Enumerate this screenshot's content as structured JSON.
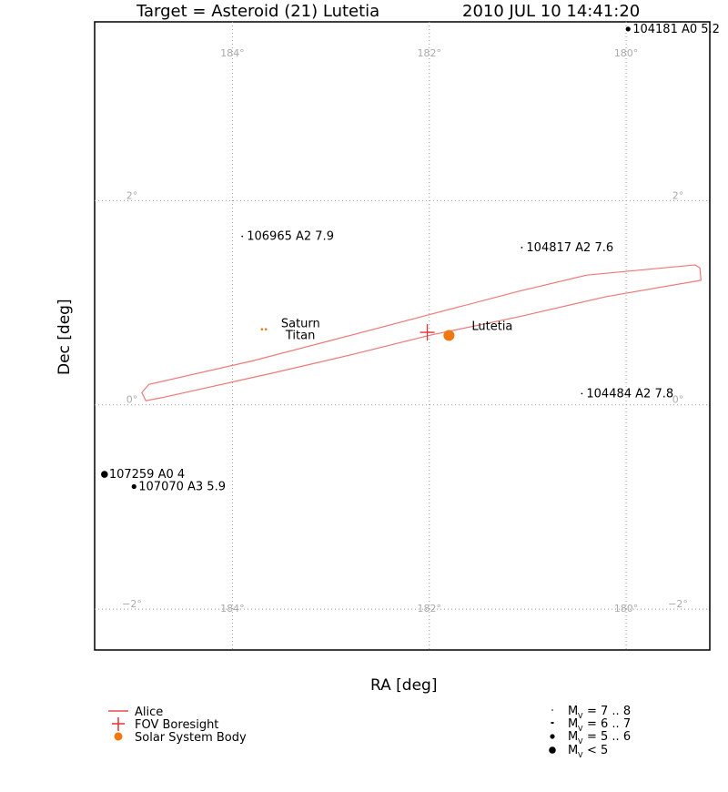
{
  "header": {
    "title": "Target = Asteroid (21) Lutetia",
    "timestamp": "2010 JUL 10 14:41:20"
  },
  "chart_data": {
    "type": "scatter",
    "xlabel": "RA [deg]",
    "ylabel": "Dec [deg]",
    "xlim": [
      185.4,
      179.15
    ],
    "ylim": [
      -2.4,
      3.75
    ],
    "grid": true,
    "x_ticks": [
      {
        "value": 184,
        "label": "184°"
      },
      {
        "value": 182,
        "label": "182°"
      },
      {
        "value": 180,
        "label": "180°"
      }
    ],
    "y_ticks": [
      {
        "value": 2,
        "label": "2°"
      },
      {
        "value": 0,
        "label": "0°"
      },
      {
        "value": -2,
        "label": "−2°"
      }
    ],
    "alice_outline": [
      [
        184.92,
        0.12
      ],
      [
        184.88,
        0.04
      ],
      [
        184.72,
        0.07
      ],
      [
        183.6,
        0.31
      ],
      [
        182.75,
        0.5
      ],
      [
        182.0,
        0.68
      ],
      [
        181.1,
        0.86
      ],
      [
        180.2,
        1.06
      ],
      [
        179.24,
        1.22
      ],
      [
        179.25,
        1.34
      ],
      [
        179.3,
        1.37
      ],
      [
        180.4,
        1.27
      ],
      [
        181.1,
        1.11
      ],
      [
        182.05,
        0.87
      ],
      [
        183.0,
        0.63
      ],
      [
        183.8,
        0.43
      ],
      [
        184.85,
        0.2
      ],
      [
        184.92,
        0.12
      ]
    ],
    "boresight": {
      "ra": 182.02,
      "dec": 0.71
    },
    "solar_system_bodies": [
      {
        "name": "Lutetia",
        "ra": 181.8,
        "dec": 0.68,
        "size": "large"
      },
      {
        "name": "Saturn",
        "ra": 183.7,
        "dec": 0.74,
        "size": "tiny"
      },
      {
        "name": "Titan",
        "ra": 183.66,
        "dec": 0.74,
        "size": "tiny"
      }
    ],
    "stars": [
      {
        "label": "104181 A0 5.2",
        "ra": 179.98,
        "dec": 3.68,
        "mag": 5.2
      },
      {
        "label": "106965 A2 7.9",
        "ra": 183.9,
        "dec": 1.65,
        "mag": 7.9
      },
      {
        "label": "104817 A2 7.6",
        "ra": 181.06,
        "dec": 1.54,
        "mag": 7.6
      },
      {
        "label": "104484 A2 7.8",
        "ra": 180.45,
        "dec": 0.11,
        "mag": 7.8
      },
      {
        "label": "107259 A0 4",
        "ra": 185.3,
        "dec": -0.68,
        "mag": 4.0
      },
      {
        "label": "107070 A3 5.9",
        "ra": 185.0,
        "dec": -0.8,
        "mag": 5.9
      }
    ]
  },
  "legend_left": {
    "alice": "Alice",
    "boresight": "FOV Boresight",
    "body": "Solar System Body"
  },
  "legend_right": {
    "r1": "= 7 .. 8",
    "r2": "= 6 .. 7",
    "r3": "= 5 .. 6",
    "r4": "< 5",
    "m": "M",
    "v": "V"
  },
  "colors": {
    "alice": "#f07878",
    "boresight": "#e83030",
    "body": "#f07810",
    "grid": "#999999",
    "tick_label": "#aaaaaa"
  }
}
